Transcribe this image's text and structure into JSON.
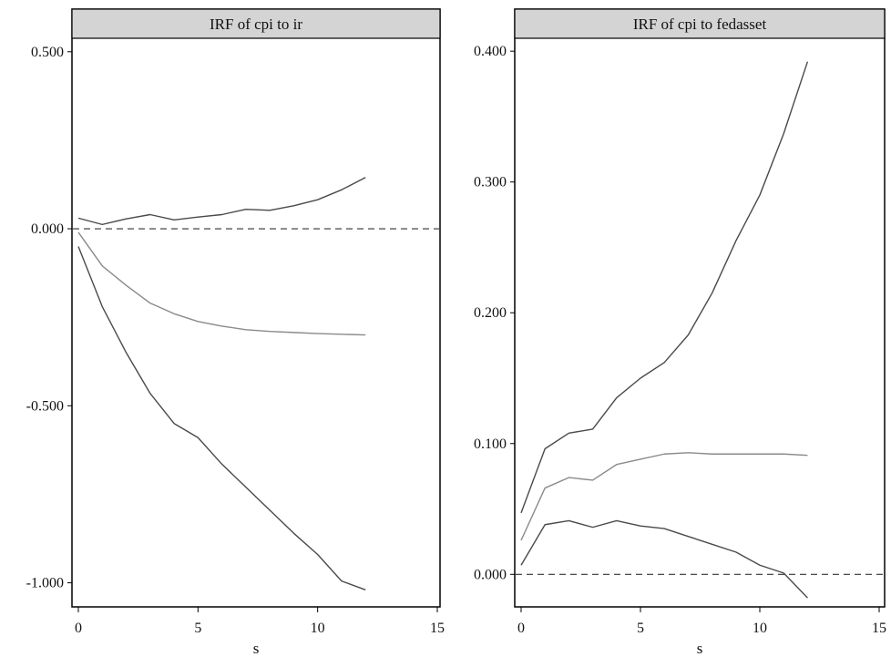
{
  "chart_data": [
    {
      "type": "line",
      "title": "IRF of cpi to ir",
      "xlabel": "s",
      "ylabel": "",
      "xlim": [
        0,
        15
      ],
      "ylim": [
        -1.05,
        0.52
      ],
      "xticks": [
        "0",
        "5",
        "10",
        "15"
      ],
      "yticks": [
        "0.500",
        "0.000",
        "-0.500",
        "-1.000"
      ],
      "reference_line": 0,
      "x": [
        0,
        1,
        2,
        3,
        4,
        5,
        6,
        7,
        8,
        9,
        10,
        11,
        12
      ],
      "series": [
        {
          "role": "upper",
          "color": "#4a4a4a",
          "values": [
            0.03,
            0.012,
            0.028,
            0.04,
            0.025,
            0.033,
            0.04,
            0.055,
            0.052,
            0.065,
            0.082,
            0.11,
            0.145
          ]
        },
        {
          "role": "irf",
          "color": "#8a8a8a",
          "values": [
            -0.01,
            -0.105,
            -0.16,
            -0.21,
            -0.24,
            -0.262,
            -0.275,
            -0.285,
            -0.29,
            -0.293,
            -0.296,
            -0.298,
            -0.3
          ]
        },
        {
          "role": "lower",
          "color": "#4a4a4a",
          "values": [
            -0.05,
            -0.22,
            -0.35,
            -0.465,
            -0.55,
            -0.59,
            -0.665,
            -0.73,
            -0.795,
            -0.86,
            -0.92,
            -0.995,
            -1.02
          ]
        }
      ]
    },
    {
      "type": "line",
      "title": "IRF of cpi to fedasset",
      "xlabel": "s",
      "ylabel": "",
      "xlim": [
        0,
        15
      ],
      "ylim": [
        -0.02,
        0.405
      ],
      "xticks": [
        "0",
        "5",
        "10",
        "15"
      ],
      "yticks": [
        "0.400",
        "0.300",
        "0.200",
        "0.100",
        "0.000"
      ],
      "reference_line": 0,
      "x": [
        0,
        1,
        2,
        3,
        4,
        5,
        6,
        7,
        8,
        9,
        10,
        11,
        12
      ],
      "series": [
        {
          "role": "upper",
          "color": "#4a4a4a",
          "values": [
            0.047,
            0.096,
            0.108,
            0.111,
            0.135,
            0.15,
            0.162,
            0.183,
            0.215,
            0.255,
            0.29,
            0.337,
            0.392
          ]
        },
        {
          "role": "irf",
          "color": "#8a8a8a",
          "values": [
            0.026,
            0.066,
            0.074,
            0.072,
            0.084,
            0.088,
            0.092,
            0.093,
            0.092,
            0.092,
            0.092,
            0.092,
            0.091
          ]
        },
        {
          "role": "lower",
          "color": "#4a4a4a",
          "values": [
            0.007,
            0.038,
            0.041,
            0.036,
            0.041,
            0.037,
            0.035,
            0.029,
            0.023,
            0.017,
            0.007,
            0.001,
            -0.018
          ]
        }
      ]
    }
  ]
}
